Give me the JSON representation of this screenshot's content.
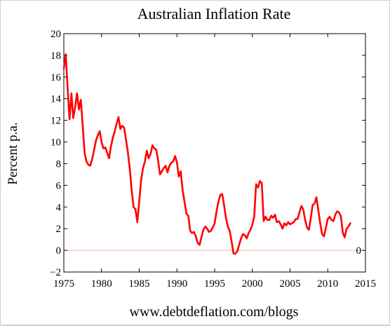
{
  "chart_data": {
    "type": "line",
    "title": "Australian Inflation Rate",
    "xlabel": "",
    "ylabel": "Percent p.a.",
    "xlim": [
      1975,
      2015
    ],
    "ylim": [
      -2,
      20
    ],
    "xticks": [
      1975,
      1980,
      1985,
      1990,
      1995,
      2000,
      2005,
      2010,
      2015
    ],
    "yticks": [
      -2,
      0,
      2,
      4,
      6,
      8,
      10,
      12,
      14,
      16,
      18,
      20
    ],
    "zero_line": true,
    "zero_label": "0",
    "grid": false,
    "series": [
      {
        "name": "",
        "color": "#ff0000",
        "points": [
          [
            1975.0,
            16.8
          ],
          [
            1975.25,
            18.1
          ],
          [
            1975.5,
            15.0
          ],
          [
            1975.75,
            12.1
          ],
          [
            1976.0,
            14.5
          ],
          [
            1976.25,
            12.2
          ],
          [
            1976.5,
            13.2
          ],
          [
            1976.75,
            14.5
          ],
          [
            1977.0,
            13.0
          ],
          [
            1977.25,
            13.9
          ],
          [
            1977.5,
            11.5
          ],
          [
            1977.75,
            9.0
          ],
          [
            1978.0,
            8.2
          ],
          [
            1978.25,
            7.9
          ],
          [
            1978.5,
            7.8
          ],
          [
            1978.75,
            8.4
          ],
          [
            1979.0,
            9.2
          ],
          [
            1979.25,
            10.1
          ],
          [
            1979.5,
            10.6
          ],
          [
            1979.75,
            11.0
          ],
          [
            1980.0,
            10.0
          ],
          [
            1980.25,
            9.4
          ],
          [
            1980.5,
            9.5
          ],
          [
            1980.75,
            9.0
          ],
          [
            1981.0,
            8.5
          ],
          [
            1981.25,
            9.6
          ],
          [
            1981.5,
            10.4
          ],
          [
            1981.75,
            11.0
          ],
          [
            1982.0,
            11.7
          ],
          [
            1982.25,
            12.3
          ],
          [
            1982.5,
            11.2
          ],
          [
            1982.75,
            11.5
          ],
          [
            1983.0,
            11.3
          ],
          [
            1983.25,
            10.2
          ],
          [
            1983.5,
            9.0
          ],
          [
            1983.75,
            7.5
          ],
          [
            1984.0,
            5.5
          ],
          [
            1984.25,
            4.0
          ],
          [
            1984.5,
            3.8
          ],
          [
            1984.75,
            2.6
          ],
          [
            1985.0,
            4.5
          ],
          [
            1985.25,
            6.5
          ],
          [
            1985.5,
            7.6
          ],
          [
            1985.75,
            8.2
          ],
          [
            1986.0,
            9.2
          ],
          [
            1986.25,
            8.5
          ],
          [
            1986.5,
            8.9
          ],
          [
            1986.75,
            9.7
          ],
          [
            1987.0,
            9.4
          ],
          [
            1987.25,
            9.3
          ],
          [
            1987.5,
            8.3
          ],
          [
            1987.75,
            7.0
          ],
          [
            1988.0,
            7.3
          ],
          [
            1988.25,
            7.6
          ],
          [
            1988.5,
            7.8
          ],
          [
            1988.75,
            7.2
          ],
          [
            1989.0,
            7.8
          ],
          [
            1989.25,
            8.1
          ],
          [
            1989.5,
            8.2
          ],
          [
            1989.75,
            8.7
          ],
          [
            1990.0,
            8.1
          ],
          [
            1990.25,
            6.8
          ],
          [
            1990.5,
            7.3
          ],
          [
            1990.75,
            5.6
          ],
          [
            1991.0,
            4.5
          ],
          [
            1991.25,
            3.4
          ],
          [
            1991.5,
            3.2
          ],
          [
            1991.75,
            1.8
          ],
          [
            1992.0,
            1.6
          ],
          [
            1992.25,
            1.7
          ],
          [
            1992.5,
            1.3
          ],
          [
            1992.75,
            0.7
          ],
          [
            1993.0,
            0.5
          ],
          [
            1993.25,
            1.2
          ],
          [
            1993.5,
            1.9
          ],
          [
            1993.75,
            2.2
          ],
          [
            1994.0,
            2.0
          ],
          [
            1994.25,
            1.7
          ],
          [
            1994.5,
            1.8
          ],
          [
            1994.75,
            2.1
          ],
          [
            1995.0,
            2.5
          ],
          [
            1995.25,
            3.6
          ],
          [
            1995.5,
            4.5
          ],
          [
            1995.75,
            5.1
          ],
          [
            1996.0,
            5.2
          ],
          [
            1996.25,
            4.2
          ],
          [
            1996.5,
            3.0
          ],
          [
            1996.75,
            2.2
          ],
          [
            1997.0,
            1.8
          ],
          [
            1997.25,
            0.8
          ],
          [
            1997.5,
            -0.3
          ],
          [
            1997.75,
            -0.3
          ],
          [
            1998.0,
            -0.1
          ],
          [
            1998.25,
            0.5
          ],
          [
            1998.5,
            1.1
          ],
          [
            1998.75,
            1.5
          ],
          [
            1999.0,
            1.4
          ],
          [
            1999.25,
            1.1
          ],
          [
            1999.5,
            1.6
          ],
          [
            1999.75,
            1.9
          ],
          [
            2000.0,
            2.4
          ],
          [
            2000.25,
            3.1
          ],
          [
            2000.5,
            6.1
          ],
          [
            2000.75,
            5.8
          ],
          [
            2001.0,
            6.4
          ],
          [
            2001.25,
            6.2
          ],
          [
            2001.5,
            2.7
          ],
          [
            2001.75,
            3.1
          ],
          [
            2002.0,
            2.8
          ],
          [
            2002.25,
            2.8
          ],
          [
            2002.5,
            3.2
          ],
          [
            2002.75,
            3.0
          ],
          [
            2003.0,
            3.3
          ],
          [
            2003.25,
            2.6
          ],
          [
            2003.5,
            2.7
          ],
          [
            2003.75,
            2.4
          ],
          [
            2004.0,
            2.0
          ],
          [
            2004.25,
            2.5
          ],
          [
            2004.5,
            2.3
          ],
          [
            2004.75,
            2.6
          ],
          [
            2005.0,
            2.4
          ],
          [
            2005.25,
            2.5
          ],
          [
            2005.5,
            2.6
          ],
          [
            2005.75,
            2.9
          ],
          [
            2006.0,
            2.9
          ],
          [
            2006.25,
            3.5
          ],
          [
            2006.5,
            4.1
          ],
          [
            2006.75,
            3.8
          ],
          [
            2007.0,
            2.8
          ],
          [
            2007.25,
            2.1
          ],
          [
            2007.5,
            1.9
          ],
          [
            2007.75,
            3.0
          ],
          [
            2008.0,
            4.2
          ],
          [
            2008.25,
            4.3
          ],
          [
            2008.5,
            4.9
          ],
          [
            2008.75,
            3.7
          ],
          [
            2009.0,
            2.5
          ],
          [
            2009.25,
            1.5
          ],
          [
            2009.5,
            1.3
          ],
          [
            2009.75,
            2.1
          ],
          [
            2010.0,
            2.9
          ],
          [
            2010.25,
            3.1
          ],
          [
            2010.5,
            2.8
          ],
          [
            2010.75,
            2.7
          ],
          [
            2011.0,
            3.3
          ],
          [
            2011.25,
            3.6
          ],
          [
            2011.5,
            3.5
          ],
          [
            2011.75,
            3.1
          ],
          [
            2012.0,
            1.6
          ],
          [
            2012.25,
            1.2
          ],
          [
            2012.5,
            2.0
          ],
          [
            2012.75,
            2.2
          ],
          [
            2013.0,
            2.5
          ]
        ]
      }
    ],
    "footer": "www.debtdeflation.com/blogs"
  }
}
